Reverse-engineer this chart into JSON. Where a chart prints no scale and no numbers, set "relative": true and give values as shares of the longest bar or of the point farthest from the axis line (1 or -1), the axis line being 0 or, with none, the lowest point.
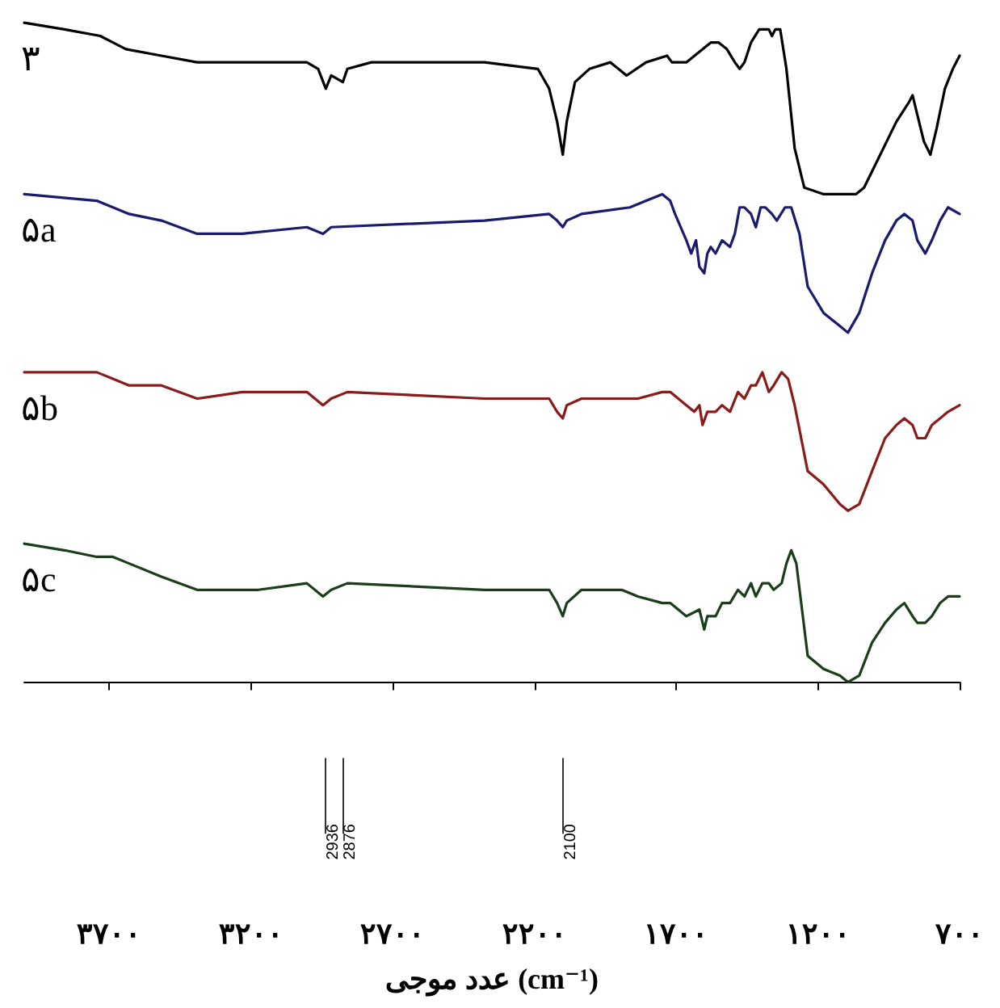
{
  "chart_data": {
    "type": "line",
    "relative": true,
    "xlabel": "عدد موجی (cm⁻¹)",
    "xlim": [
      4000,
      700
    ],
    "xticks": [
      {
        "value": 3700,
        "label": "۳۷۰۰"
      },
      {
        "value": 3200,
        "label": "۳۲۰۰"
      },
      {
        "value": 2700,
        "label": "۲۷۰۰"
      },
      {
        "value": 2200,
        "label": "۲۲۰۰"
      },
      {
        "value": 1700,
        "label": "۱۷۰۰"
      },
      {
        "value": 1200,
        "label": "۱۲۰۰"
      },
      {
        "value": 700,
        "label": "۷۰۰"
      }
    ],
    "tick_labels": "x",
    "grid": false,
    "legend": false,
    "marker": "none",
    "line_style": "solid",
    "ref_lines": [
      {
        "axis": "x",
        "value": 2936,
        "label": "2936"
      },
      {
        "axis": "x",
        "value": 2876,
        "label": "2876"
      },
      {
        "axis": "x",
        "value": 2100,
        "label": "2100"
      }
    ],
    "series": [
      {
        "name": "۳",
        "color": "#000000",
        "x": [
          4000,
          3858,
          3732,
          3687,
          3641,
          3516,
          3390,
          3316,
          3174,
          3003,
          2963,
          2936,
          2917,
          2876,
          2860,
          2775,
          2376,
          2188,
          2148,
          2120,
          2100,
          2086,
          2057,
          2006,
          1932,
          1875,
          1806,
          1732,
          1715,
          1704,
          1664,
          1578,
          1550,
          1521,
          1493,
          1476,
          1459,
          1436,
          1407,
          1385,
          1373,
          1362,
          1350,
          1333,
          1311,
          1282,
          1248,
          1180,
          1066,
          1037,
          980,
          923,
          878,
          866,
          849,
          826,
          803,
          781,
          752,
          724,
          700
        ],
        "values": [
          1.0,
          0.99,
          0.98,
          0.97,
          0.96,
          0.95,
          0.94,
          0.94,
          0.94,
          0.94,
          0.93,
          0.9,
          0.92,
          0.91,
          0.93,
          0.94,
          0.94,
          0.93,
          0.9,
          0.85,
          0.8,
          0.85,
          0.91,
          0.93,
          0.94,
          0.92,
          0.94,
          0.95,
          0.94,
          0.94,
          0.94,
          0.97,
          0.97,
          0.96,
          0.94,
          0.93,
          0.94,
          0.97,
          0.99,
          0.99,
          0.99,
          0.98,
          0.99,
          0.99,
          0.93,
          0.81,
          0.75,
          0.74,
          0.74,
          0.75,
          0.8,
          0.85,
          0.88,
          0.89,
          0.86,
          0.82,
          0.8,
          0.84,
          0.9,
          0.93,
          0.95
        ]
      },
      {
        "name": "۵a",
        "color": "#1a1a6e",
        "x": [
          4000,
          3744,
          3687,
          3630,
          3516,
          3390,
          3345,
          3231,
          3003,
          2946,
          2917,
          2376,
          2148,
          2120,
          2100,
          2086,
          2034,
          1863,
          1806,
          1749,
          1721,
          1704,
          1664,
          1647,
          1630,
          1618,
          1601,
          1590,
          1578,
          1561,
          1538,
          1510,
          1493,
          1476,
          1459,
          1436,
          1419,
          1402,
          1385,
          1362,
          1345,
          1316,
          1294,
          1265,
          1236,
          1180,
          1122,
          1094,
          1054,
          1009,
          963,
          923,
          895,
          866,
          849,
          821,
          798,
          769,
          741,
          700
        ],
        "values": [
          0.74,
          0.73,
          0.72,
          0.71,
          0.7,
          0.68,
          0.68,
          0.68,
          0.69,
          0.68,
          0.69,
          0.7,
          0.71,
          0.7,
          0.69,
          0.7,
          0.71,
          0.72,
          0.73,
          0.74,
          0.73,
          0.71,
          0.67,
          0.65,
          0.67,
          0.63,
          0.62,
          0.65,
          0.66,
          0.65,
          0.67,
          0.66,
          0.68,
          0.72,
          0.72,
          0.71,
          0.69,
          0.72,
          0.72,
          0.71,
          0.7,
          0.72,
          0.72,
          0.68,
          0.6,
          0.56,
          0.54,
          0.53,
          0.56,
          0.62,
          0.67,
          0.7,
          0.71,
          0.7,
          0.67,
          0.65,
          0.67,
          0.7,
          0.72,
          0.71
        ]
      },
      {
        "name": "۵b",
        "color": "#8b1a1a",
        "x": [
          4000,
          3744,
          3687,
          3630,
          3516,
          3390,
          3231,
          3003,
          2946,
          2917,
          2860,
          2376,
          2205,
          2148,
          2120,
          2100,
          2086,
          2034,
          1863,
          1835,
          1749,
          1721,
          1664,
          1636,
          1618,
          1607,
          1590,
          1561,
          1538,
          1510,
          1482,
          1459,
          1436,
          1419,
          1396,
          1373,
          1356,
          1328,
          1305,
          1282,
          1236,
          1180,
          1122,
          1094,
          1054,
          1009,
          963,
          923,
          895,
          866,
          849,
          821,
          798,
          769,
          741,
          700
        ],
        "values": [
          0.47,
          0.47,
          0.46,
          0.45,
          0.45,
          0.43,
          0.44,
          0.44,
          0.42,
          0.43,
          0.44,
          0.43,
          0.43,
          0.43,
          0.41,
          0.4,
          0.42,
          0.43,
          0.43,
          0.43,
          0.44,
          0.44,
          0.42,
          0.41,
          0.42,
          0.39,
          0.41,
          0.41,
          0.42,
          0.41,
          0.44,
          0.43,
          0.45,
          0.45,
          0.47,
          0.44,
          0.45,
          0.47,
          0.46,
          0.42,
          0.32,
          0.3,
          0.27,
          0.26,
          0.27,
          0.32,
          0.37,
          0.39,
          0.4,
          0.39,
          0.37,
          0.37,
          0.39,
          0.4,
          0.41,
          0.42
        ]
      },
      {
        "name": "۵c",
        "color": "#1a3d1a",
        "x": [
          4000,
          3858,
          3744,
          3687,
          3630,
          3516,
          3390,
          3345,
          3174,
          3003,
          2946,
          2917,
          2860,
          2376,
          2205,
          2148,
          2120,
          2100,
          2086,
          2034,
          1892,
          1835,
          1749,
          1721,
          1664,
          1618,
          1601,
          1590,
          1561,
          1538,
          1510,
          1482,
          1459,
          1436,
          1419,
          1396,
          1373,
          1356,
          1328,
          1311,
          1294,
          1276,
          1236,
          1180,
          1122,
          1094,
          1054,
          1009,
          963,
          923,
          895,
          866,
          849,
          821,
          798,
          769,
          741,
          700
        ],
        "values": [
          0.21,
          0.2,
          0.19,
          0.19,
          0.18,
          0.16,
          0.14,
          0.14,
          0.14,
          0.15,
          0.13,
          0.14,
          0.15,
          0.14,
          0.14,
          0.14,
          0.12,
          0.1,
          0.12,
          0.14,
          0.14,
          0.13,
          0.12,
          0.12,
          0.1,
          0.11,
          0.08,
          0.1,
          0.1,
          0.12,
          0.12,
          0.14,
          0.13,
          0.15,
          0.13,
          0.15,
          0.15,
          0.14,
          0.15,
          0.18,
          0.2,
          0.18,
          0.04,
          0.02,
          0.01,
          0.0,
          0.01,
          0.06,
          0.09,
          0.11,
          0.12,
          0.1,
          0.09,
          0.09,
          0.1,
          0.12,
          0.13,
          0.13
        ]
      }
    ]
  }
}
